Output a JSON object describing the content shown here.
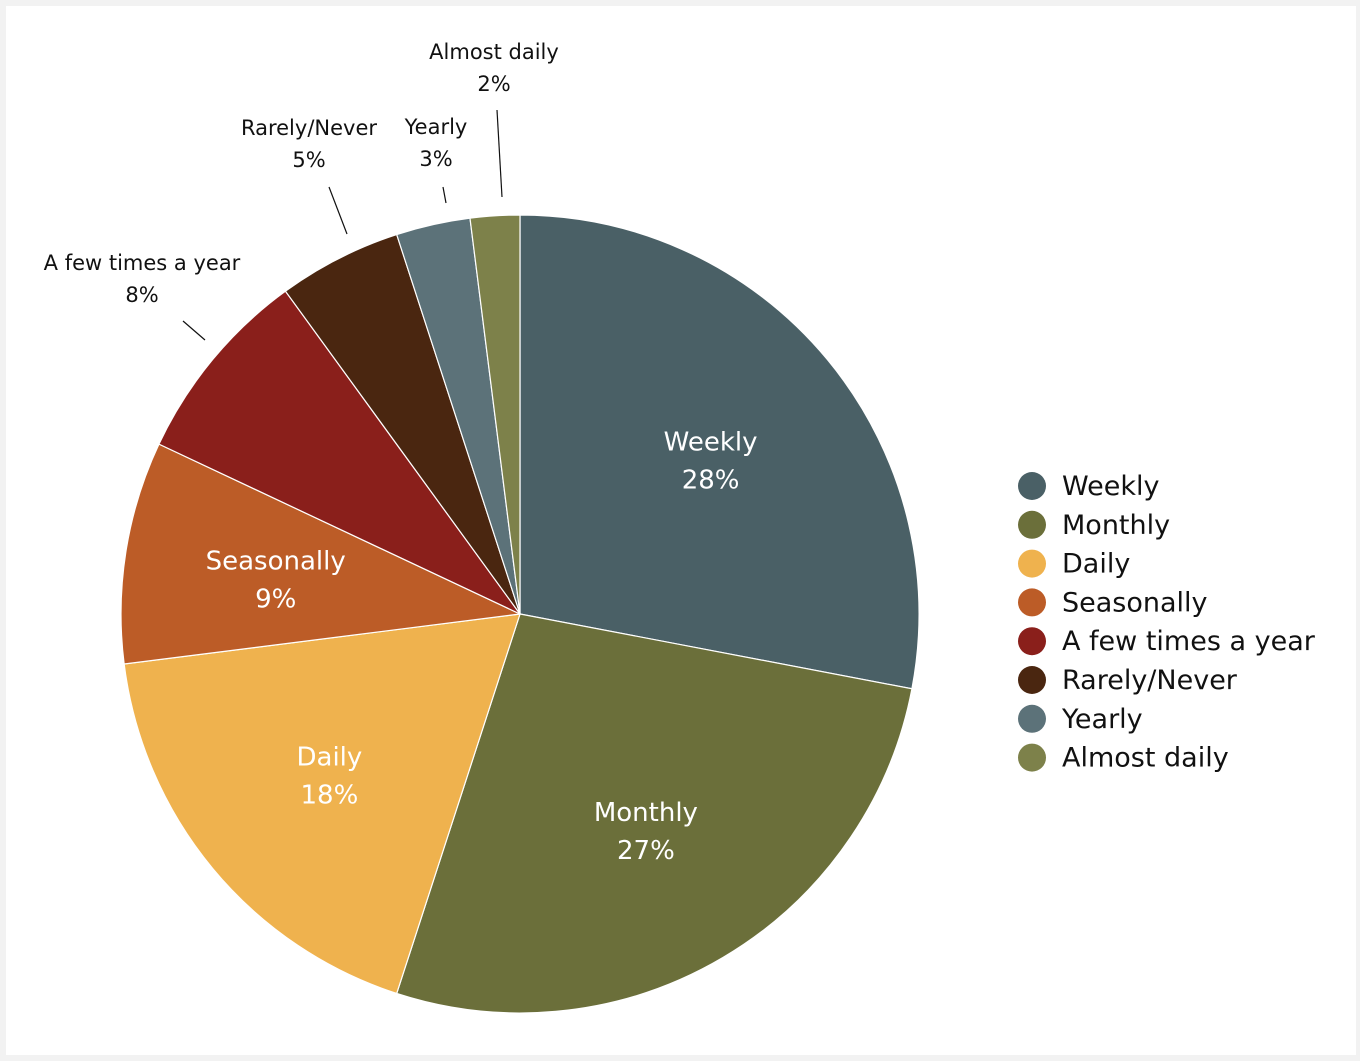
{
  "chart_data": {
    "type": "pie",
    "title": "",
    "legend_position": "right",
    "slices": [
      {
        "label": "Weekly",
        "value": 28,
        "display": "28%",
        "color": "#4a6066",
        "label_placement": "inside"
      },
      {
        "label": "Monthly",
        "value": 27,
        "display": "27%",
        "color": "#6b6f3a",
        "label_placement": "inside"
      },
      {
        "label": "Daily",
        "value": 18,
        "display": "18%",
        "color": "#efb24e",
        "label_placement": "inside"
      },
      {
        "label": "Seasonally",
        "value": 9,
        "display": "9%",
        "color": "#bc5c27",
        "label_placement": "inside"
      },
      {
        "label": "A few times a year",
        "value": 8,
        "display": "8%",
        "color": "#8a1f1b",
        "label_placement": "outside"
      },
      {
        "label": "Rarely/Never",
        "value": 5,
        "display": "5%",
        "color": "#4a2610",
        "label_placement": "outside"
      },
      {
        "label": "Yearly",
        "value": 3,
        "display": "3%",
        "color": "#5c7279",
        "label_placement": "outside"
      },
      {
        "label": "Almost daily",
        "value": 2,
        "display": "2%",
        "color": "#7d814a",
        "label_placement": "outside"
      }
    ]
  }
}
